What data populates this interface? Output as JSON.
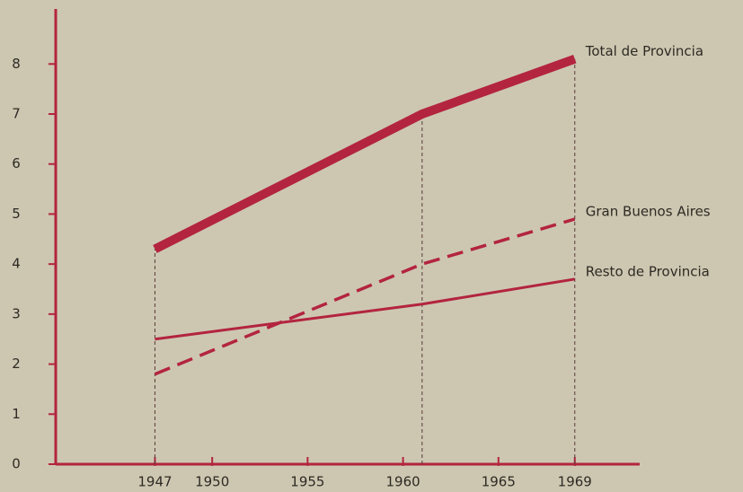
{
  "chart_data": {
    "type": "line",
    "x": [
      1947,
      1961,
      1969
    ],
    "series": [
      {
        "name": "Total de Provincia",
        "color": "#b3243f",
        "values": [
          4.3,
          7.0,
          8.1
        ],
        "line_width": 10,
        "dashed": false
      },
      {
        "name": "Gran Buenos Aires",
        "color": "#b3243f",
        "values": [
          1.8,
          4.0,
          4.9
        ],
        "line_width": 3.5,
        "dashed": true
      },
      {
        "name": "Resto de Provincia",
        "color": "#b3243f",
        "values": [
          2.5,
          3.2,
          3.7
        ],
        "line_width": 3,
        "dashed": false
      }
    ],
    "xlim": [
      1941.8,
      1972.4
    ],
    "xticks": [
      1947,
      1950,
      1955,
      1960,
      1965,
      1969
    ],
    "ylim": [
      0,
      9.1
    ],
    "yticks": [
      0,
      1,
      2,
      3,
      4,
      5,
      6,
      7,
      8
    ],
    "grid": false,
    "drop_lines": true
  }
}
